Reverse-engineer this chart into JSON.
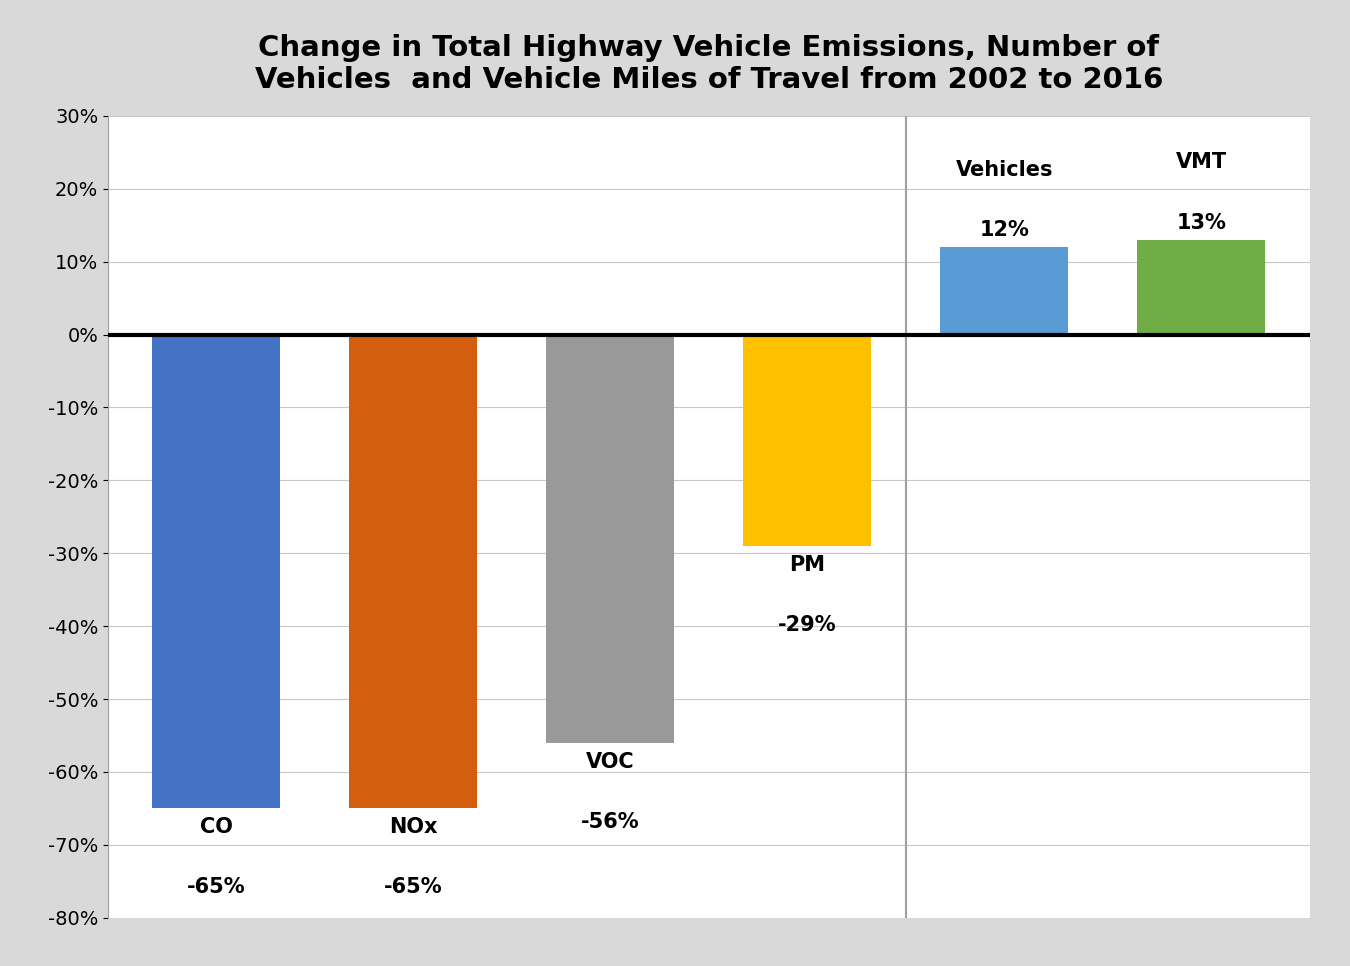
{
  "categories": [
    "CO",
    "NOx",
    "VOC",
    "PM",
    "Vehicles",
    "VMT"
  ],
  "values": [
    -65,
    -65,
    -56,
    -29,
    12,
    13
  ],
  "bar_colors": [
    "#4472C4",
    "#D35F0E",
    "#999999",
    "#FFC000",
    "#5B9BD5",
    "#70AD47"
  ],
  "neg_label_names": [
    "CO",
    "NOx",
    "VOC",
    "PM"
  ],
  "neg_label_pcts": [
    "-65%",
    "-65%",
    "-56%",
    "-29%"
  ],
  "pos_label_names": [
    "Vehicles",
    "VMT"
  ],
  "pos_label_pcts": [
    "12%",
    "13%"
  ],
  "title_line1": "Change in Total Highway Vehicle Emissions, Number of",
  "title_line2": "Vehicles  and Vehicle Miles of Travel from 2002 to 2016",
  "ylim": [
    -80,
    30
  ],
  "yticks": [
    -80,
    -70,
    -60,
    -50,
    -40,
    -30,
    -20,
    -10,
    0,
    10,
    20,
    30
  ],
  "ytick_labels": [
    "-80%",
    "-70%",
    "-60%",
    "-50%",
    "-40%",
    "-30%",
    "-20%",
    "-10%",
    "0%",
    "10%",
    "20%",
    "30%"
  ],
  "background_color": "#D9D9D9",
  "plot_bg_color": "#FFFFFF",
  "title_fontsize": 21,
  "label_fontsize": 15,
  "tick_fontsize": 14,
  "bar_width": 0.65,
  "xlim_left": -0.55,
  "xlim_right": 5.55
}
